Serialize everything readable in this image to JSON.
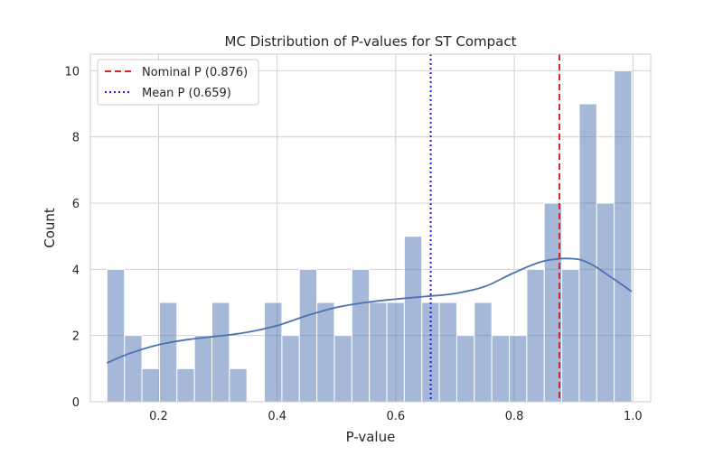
{
  "chart_data": {
    "type": "bar",
    "title": "MC Distribution of P-values for ST Compact",
    "xlabel": "P-value",
    "ylabel": "Count",
    "xlim": [
      0.085,
      1.03
    ],
    "ylim": [
      0,
      10.5
    ],
    "xticks": [
      0.2,
      0.4,
      0.6,
      0.8,
      1.0
    ],
    "xtick_labels": [
      "0.2",
      "0.4",
      "0.6",
      "0.8",
      "1.0"
    ],
    "yticks": [
      0,
      2,
      4,
      6,
      8,
      10
    ],
    "ytick_labels": [
      "0",
      "2",
      "4",
      "6",
      "8",
      "10"
    ],
    "grid": true,
    "legend_position": "top-left",
    "bin_start": 0.113,
    "bin_width": 0.0295,
    "counts": [
      4,
      2,
      1,
      3,
      1,
      2,
      3,
      1,
      0,
      3,
      2,
      4,
      3,
      2,
      4,
      3,
      3,
      5,
      3,
      3,
      2,
      3,
      2,
      2,
      4,
      6,
      4,
      9,
      6,
      10
    ],
    "kde": {
      "x": [
        0.113,
        0.15,
        0.2,
        0.25,
        0.3,
        0.35,
        0.4,
        0.45,
        0.5,
        0.55,
        0.6,
        0.65,
        0.7,
        0.75,
        0.8,
        0.85,
        0.9,
        0.93,
        0.96,
        0.998
      ],
      "y": [
        1.17,
        1.45,
        1.72,
        1.88,
        1.98,
        2.1,
        2.3,
        2.6,
        2.85,
        3.0,
        3.1,
        3.18,
        3.27,
        3.48,
        3.9,
        4.25,
        4.32,
        4.15,
        3.8,
        3.33
      ]
    },
    "reference_lines": [
      {
        "name": "Nominal P (0.876)",
        "x": 0.876,
        "style": "dashed",
        "color": "#d62728"
      },
      {
        "name": "Mean P (0.659)",
        "x": 0.659,
        "style": "dotted",
        "color": "#1f1fe0"
      }
    ],
    "bar_color": "#4c72b0",
    "kde_color": "#4c72b0"
  }
}
